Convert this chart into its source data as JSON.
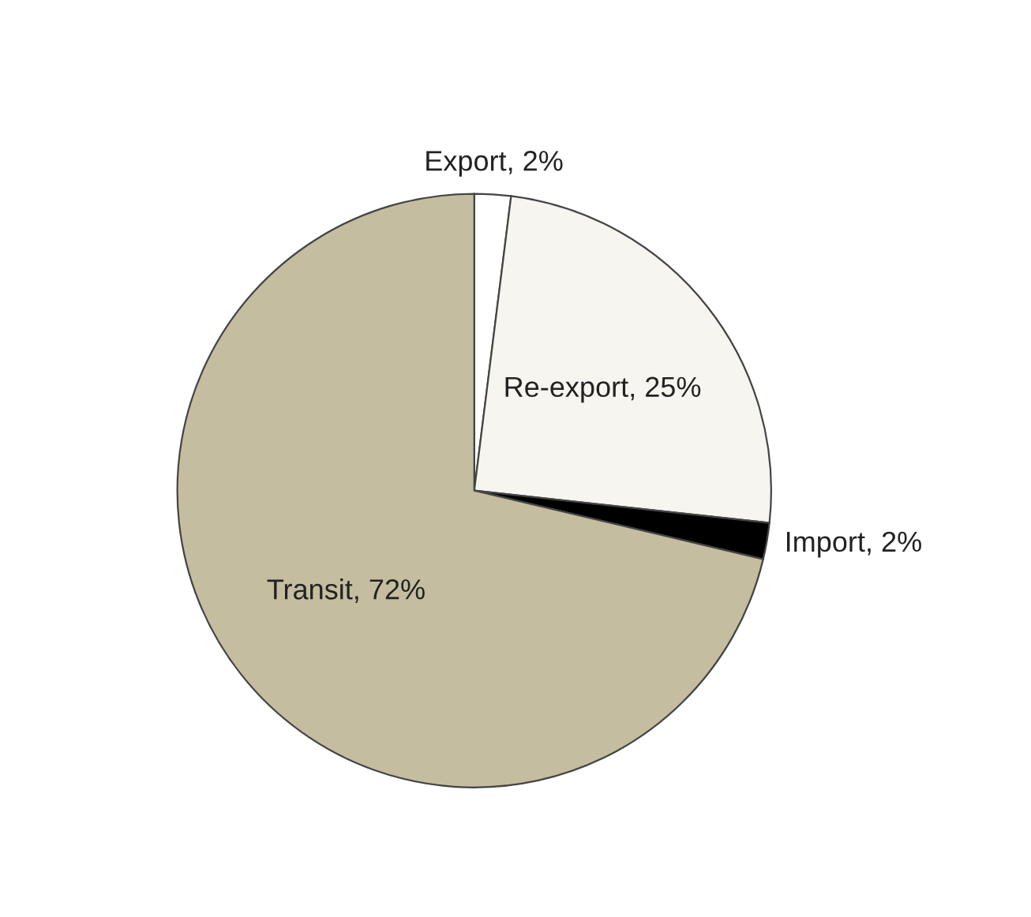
{
  "chart_data": {
    "type": "pie",
    "categories": [
      "Export",
      "Re-export",
      "Import",
      "Transit"
    ],
    "values": [
      2,
      25,
      2,
      72
    ],
    "colors": [
      "#ffffff",
      "#f7f5f0",
      "#000000",
      "#c5bda0"
    ],
    "value_labels": [
      "2%",
      "25%",
      "2%",
      "72%"
    ],
    "legend": false
  }
}
